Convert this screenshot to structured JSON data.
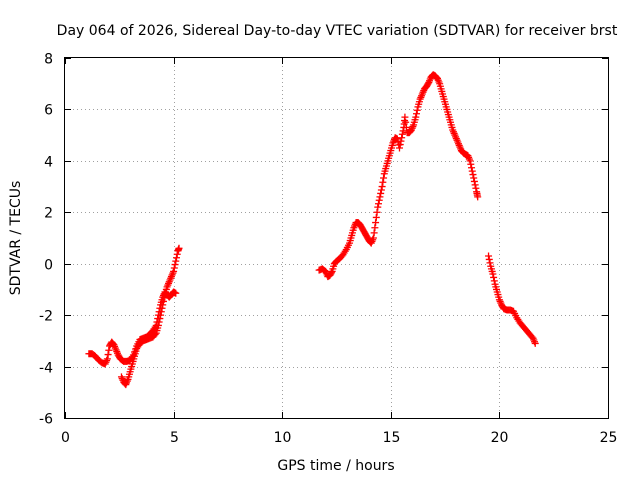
{
  "chart_data": {
    "type": "scatter",
    "title": "Day 064 of 2026, Sidereal Day-to-day VTEC variation (SDTVAR) for receiver brst",
    "xlabel": "GPS time / hours",
    "ylabel": "SDTVAR / TECUs",
    "xlim": [
      0,
      25
    ],
    "ylim": [
      -6,
      8
    ],
    "xticks": [
      "0",
      "5",
      "10",
      "15",
      "20",
      "25"
    ],
    "yticks": [
      "-6",
      "-4",
      "-2",
      "0",
      "2",
      "4",
      "6",
      "8"
    ],
    "grid": true,
    "marker": "plus",
    "color": "#ff0000",
    "series": [
      {
        "name": "SDTVAR",
        "segments": [
          [
            [
              1.1,
              -3.5
            ],
            [
              1.25,
              -3.5
            ],
            [
              1.4,
              -3.6
            ],
            [
              1.55,
              -3.75
            ],
            [
              1.7,
              -3.85
            ],
            [
              1.85,
              -3.9
            ],
            [
              1.95,
              -3.7
            ],
            [
              2.05,
              -3.2
            ],
            [
              2.15,
              -3.05
            ],
            [
              2.25,
              -3.15
            ],
            [
              2.35,
              -3.35
            ],
            [
              2.45,
              -3.55
            ],
            [
              2.55,
              -3.7
            ],
            [
              2.7,
              -3.8
            ],
            [
              2.85,
              -3.8
            ],
            [
              3.0,
              -3.75
            ],
            [
              3.15,
              -3.55
            ],
            [
              3.3,
              -3.2
            ],
            [
              3.45,
              -2.95
            ],
            [
              3.6,
              -2.9
            ],
            [
              3.75,
              -2.85
            ],
            [
              3.9,
              -2.75
            ],
            [
              4.05,
              -2.6
            ],
            [
              4.2,
              -2.4
            ],
            [
              4.3,
              -2.0
            ],
            [
              4.4,
              -1.6
            ],
            [
              4.5,
              -1.3
            ],
            [
              4.6,
              -1.1
            ],
            [
              4.7,
              -1.2
            ],
            [
              4.8,
              -1.3
            ],
            [
              4.9,
              -1.2
            ],
            [
              5.0,
              -1.1
            ],
            [
              5.1,
              -1.15
            ]
          ],
          [
            [
              2.6,
              -4.4
            ],
            [
              2.7,
              -4.6
            ],
            [
              2.8,
              -4.7
            ],
            [
              2.9,
              -4.5
            ],
            [
              3.0,
              -4.2
            ],
            [
              3.1,
              -3.9
            ],
            [
              3.2,
              -3.6
            ],
            [
              3.3,
              -3.3
            ],
            [
              3.45,
              -3.1
            ],
            [
              3.6,
              -3.0
            ],
            [
              3.75,
              -2.95
            ],
            [
              3.9,
              -2.9
            ],
            [
              4.05,
              -2.85
            ],
            [
              4.2,
              -2.7
            ],
            [
              4.3,
              -2.4
            ],
            [
              4.4,
              -2.0
            ],
            [
              4.5,
              -1.6
            ],
            [
              4.6,
              -1.2
            ],
            [
              4.7,
              -0.9
            ],
            [
              4.8,
              -0.7
            ],
            [
              4.9,
              -0.5
            ],
            [
              5.0,
              -0.3
            ],
            [
              5.1,
              0.1
            ],
            [
              5.2,
              0.5
            ],
            [
              5.25,
              0.6
            ]
          ],
          [
            [
              11.7,
              -0.25
            ],
            [
              11.85,
              -0.2
            ],
            [
              12.0,
              -0.3
            ],
            [
              12.1,
              -0.5
            ],
            [
              12.2,
              -0.45
            ],
            [
              12.3,
              -0.3
            ],
            [
              12.4,
              0.0
            ],
            [
              12.5,
              0.1
            ],
            [
              12.65,
              0.2
            ],
            [
              12.8,
              0.35
            ],
            [
              12.95,
              0.55
            ],
            [
              13.1,
              0.8
            ],
            [
              13.2,
              1.1
            ],
            [
              13.3,
              1.4
            ],
            [
              13.4,
              1.6
            ],
            [
              13.5,
              1.6
            ],
            [
              13.6,
              1.5
            ],
            [
              13.7,
              1.35
            ],
            [
              13.8,
              1.2
            ],
            [
              13.9,
              1.05
            ],
            [
              14.0,
              0.9
            ],
            [
              14.1,
              0.8
            ],
            [
              14.2,
              1.0
            ],
            [
              14.3,
              1.6
            ],
            [
              14.4,
              2.2
            ],
            [
              14.5,
              2.6
            ],
            [
              14.6,
              3.0
            ],
            [
              14.7,
              3.5
            ],
            [
              14.8,
              3.8
            ],
            [
              14.9,
              4.1
            ],
            [
              15.0,
              4.4
            ],
            [
              15.1,
              4.7
            ],
            [
              15.2,
              4.9
            ],
            [
              15.3,
              4.85
            ],
            [
              15.4,
              4.5
            ],
            [
              15.5,
              4.9
            ],
            [
              15.6,
              5.3
            ],
            [
              15.65,
              5.7
            ],
            [
              15.75,
              5.1
            ],
            [
              15.85,
              5.1
            ],
            [
              15.95,
              5.2
            ],
            [
              16.05,
              5.4
            ],
            [
              16.15,
              5.7
            ],
            [
              16.25,
              6.1
            ],
            [
              16.35,
              6.4
            ],
            [
              16.45,
              6.6
            ],
            [
              16.55,
              6.8
            ],
            [
              16.65,
              6.9
            ],
            [
              16.75,
              7.05
            ],
            [
              16.85,
              7.25
            ],
            [
              16.95,
              7.35
            ],
            [
              17.05,
              7.3
            ],
            [
              17.15,
              7.2
            ],
            [
              17.25,
              7.0
            ],
            [
              17.35,
              6.7
            ],
            [
              17.45,
              6.4
            ],
            [
              17.55,
              6.1
            ],
            [
              17.65,
              5.8
            ],
            [
              17.75,
              5.5
            ],
            [
              17.85,
              5.2
            ],
            [
              17.95,
              5.0
            ],
            [
              18.05,
              4.8
            ],
            [
              18.15,
              4.6
            ],
            [
              18.25,
              4.4
            ],
            [
              18.35,
              4.3
            ],
            [
              18.45,
              4.25
            ],
            [
              18.55,
              4.2
            ],
            [
              18.65,
              4.0
            ],
            [
              18.75,
              3.6
            ],
            [
              18.85,
              3.2
            ],
            [
              18.95,
              2.8
            ],
            [
              19.0,
              2.6
            ]
          ],
          [
            [
              19.5,
              0.3
            ],
            [
              19.6,
              -0.1
            ],
            [
              19.7,
              -0.4
            ],
            [
              19.8,
              -0.8
            ],
            [
              19.9,
              -1.1
            ],
            [
              20.0,
              -1.4
            ],
            [
              20.1,
              -1.6
            ],
            [
              20.2,
              -1.75
            ],
            [
              20.35,
              -1.8
            ],
            [
              20.5,
              -1.8
            ],
            [
              20.65,
              -1.85
            ],
            [
              20.8,
              -2.1
            ],
            [
              20.95,
              -2.3
            ],
            [
              21.1,
              -2.45
            ],
            [
              21.25,
              -2.6
            ],
            [
              21.4,
              -2.75
            ],
            [
              21.55,
              -2.9
            ],
            [
              21.65,
              -3.1
            ]
          ]
        ]
      }
    ]
  }
}
